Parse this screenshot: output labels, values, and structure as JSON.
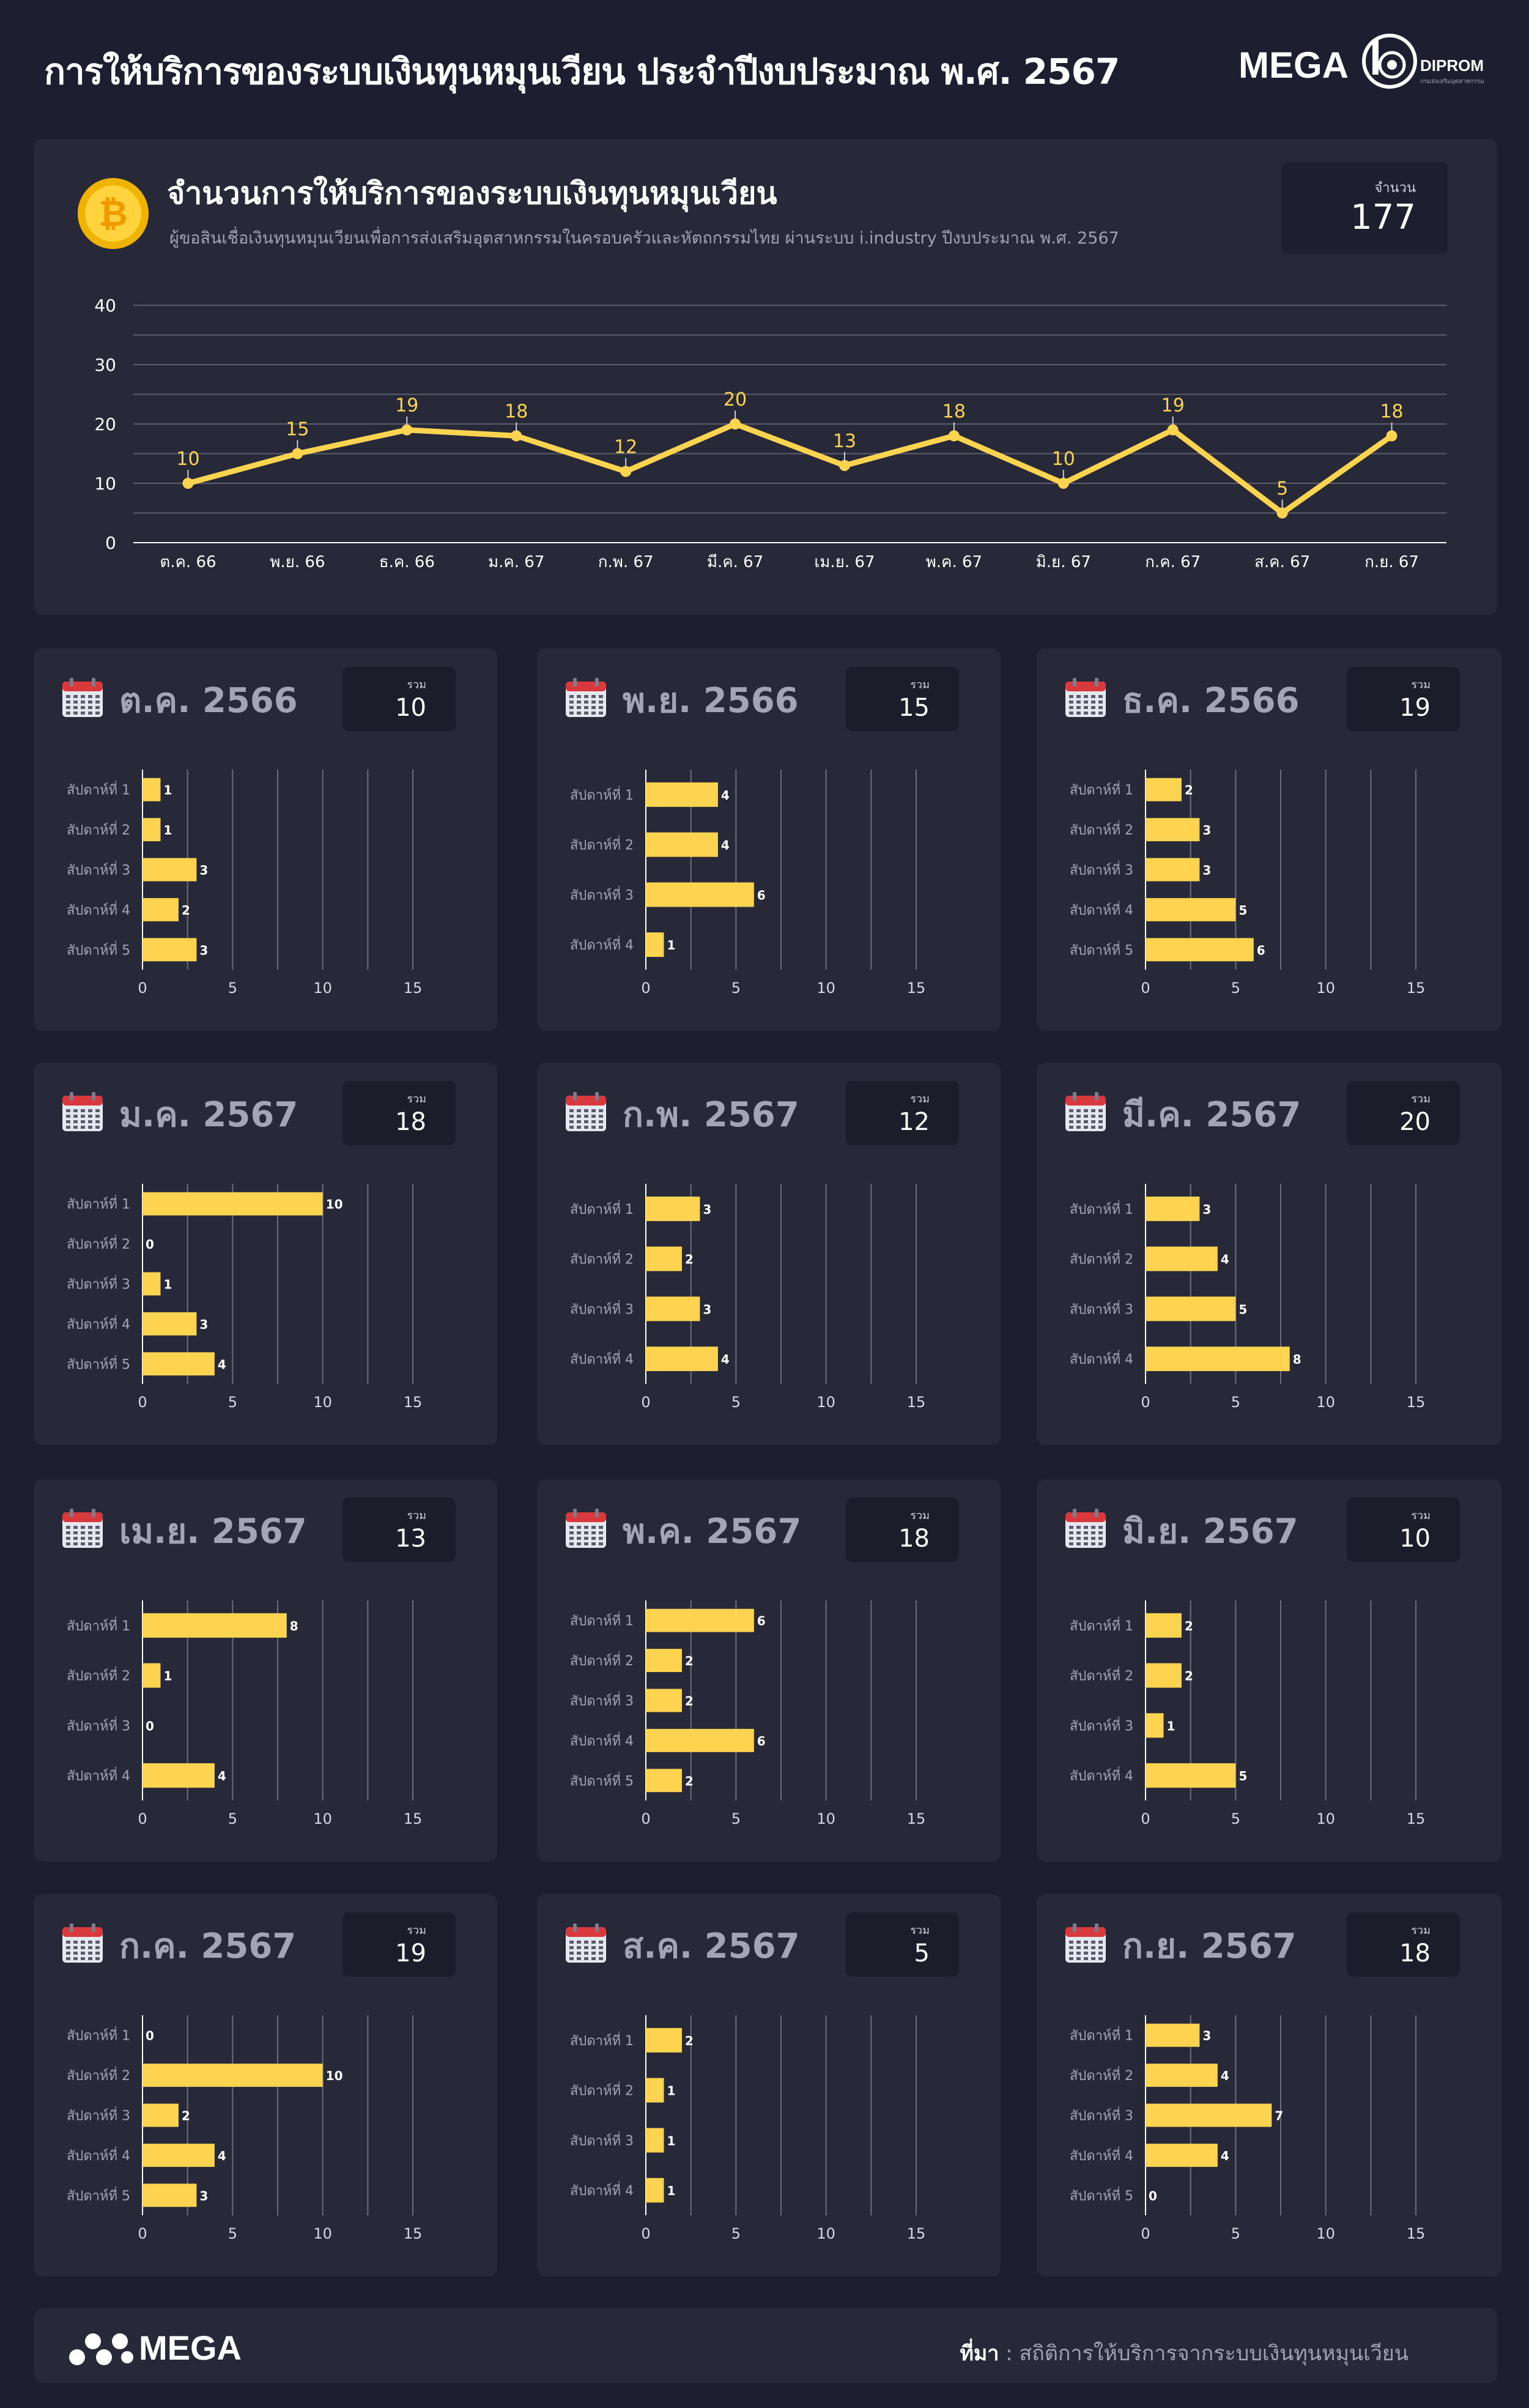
{
  "header": {
    "title": "การให้บริการของระบบเงินทุนหมุนเวียน ประจำปีงบประมาณ พ.ศ. 2567",
    "brand": "MEGA",
    "partner": "DIPROM",
    "partner_sub": "กรมส่งเสริมอุตสาหกรรม"
  },
  "summary": {
    "title": "จำนวนการให้บริการของระบบเงินทุนหมุนเวียน",
    "subtitle": "ผู้ขอสินเชื่อเงินทุนหมุนเวียนเพื่อการส่งเสริมอุตสาหกรรมในครอบครัวและหัตถกรรมไทย ผ่านระบบ i.industry ปีงบประมาณ พ.ศ.  2567",
    "total_label": "จำนวน",
    "total_value": "177"
  },
  "colors": {
    "accent": "#fdd450",
    "background": "#1d1e2f",
    "panel": "#272939",
    "muted": "#a3a5b6"
  },
  "chart_data": [
    {
      "type": "line",
      "categories": [
        "ต.ค. 66",
        "พ.ย. 66",
        "ธ.ค. 66",
        "ม.ค. 67",
        "ก.พ. 67",
        "มี.ค. 67",
        "เม.ย. 67",
        "พ.ค. 67",
        "มิ.ย. 67",
        "ก.ค. 67",
        "ส.ค. 67",
        "ก.ย. 67"
      ],
      "values": [
        10,
        15,
        19,
        18,
        12,
        20,
        13,
        18,
        10,
        19,
        5,
        18
      ],
      "ylim": [
        0,
        40
      ],
      "yticks": [
        0,
        10,
        20,
        30,
        40
      ],
      "grid": true
    },
    {
      "type": "bar",
      "orientation": "horizontal",
      "title": "ต.ค. 2566",
      "sum_label": "รวม",
      "sum": "10",
      "categories": [
        "สัปดาห์ที่ 1",
        "สัปดาห์ที่ 2",
        "สัปดาห์ที่ 3",
        "สัปดาห์ที่ 4",
        "สัปดาห์ที่ 5"
      ],
      "values": [
        1,
        1,
        3,
        2,
        3
      ],
      "xlim": [
        0,
        15
      ],
      "xticks": [
        0,
        5,
        10,
        15
      ]
    },
    {
      "type": "bar",
      "orientation": "horizontal",
      "title": "พ.ย. 2566",
      "sum_label": "รวม",
      "sum": "15",
      "categories": [
        "สัปดาห์ที่ 1",
        "สัปดาห์ที่ 2",
        "สัปดาห์ที่ 3",
        "สัปดาห์ที่ 4"
      ],
      "values": [
        4,
        4,
        6,
        1
      ],
      "xlim": [
        0,
        15
      ],
      "xticks": [
        0,
        5,
        10,
        15
      ]
    },
    {
      "type": "bar",
      "orientation": "horizontal",
      "title": "ธ.ค. 2566",
      "sum_label": "รวม",
      "sum": "19",
      "categories": [
        "สัปดาห์ที่ 1",
        "สัปดาห์ที่ 2",
        "สัปดาห์ที่ 3",
        "สัปดาห์ที่ 4",
        "สัปดาห์ที่ 5"
      ],
      "values": [
        2,
        3,
        3,
        5,
        6
      ],
      "xlim": [
        0,
        15
      ],
      "xticks": [
        0,
        5,
        10,
        15
      ]
    },
    {
      "type": "bar",
      "orientation": "horizontal",
      "title": "ม.ค. 2567",
      "sum_label": "รวม",
      "sum": "18",
      "categories": [
        "สัปดาห์ที่ 1",
        "สัปดาห์ที่ 2",
        "สัปดาห์ที่ 3",
        "สัปดาห์ที่ 4",
        "สัปดาห์ที่ 5"
      ],
      "values": [
        10,
        0,
        1,
        3,
        4
      ],
      "xlim": [
        0,
        15
      ],
      "xticks": [
        0,
        5,
        10,
        15
      ]
    },
    {
      "type": "bar",
      "orientation": "horizontal",
      "title": "ก.พ. 2567",
      "sum_label": "รวม",
      "sum": "12",
      "categories": [
        "สัปดาห์ที่ 1",
        "สัปดาห์ที่ 2",
        "สัปดาห์ที่ 3",
        "สัปดาห์ที่ 4"
      ],
      "values": [
        3,
        2,
        3,
        4
      ],
      "xlim": [
        0,
        15
      ],
      "xticks": [
        0,
        5,
        10,
        15
      ]
    },
    {
      "type": "bar",
      "orientation": "horizontal",
      "title": "มี.ค. 2567",
      "sum_label": "รวม",
      "sum": "20",
      "categories": [
        "สัปดาห์ที่ 1",
        "สัปดาห์ที่ 2",
        "สัปดาห์ที่ 3",
        "สัปดาห์ที่ 4"
      ],
      "values": [
        3,
        4,
        5,
        8
      ],
      "xlim": [
        0,
        15
      ],
      "xticks": [
        0,
        5,
        10,
        15
      ]
    },
    {
      "type": "bar",
      "orientation": "horizontal",
      "title": "เม.ย. 2567",
      "sum_label": "รวม",
      "sum": "13",
      "categories": [
        "สัปดาห์ที่ 1",
        "สัปดาห์ที่ 2",
        "สัปดาห์ที่ 3",
        "สัปดาห์ที่ 4"
      ],
      "values": [
        8,
        1,
        0,
        4
      ],
      "xlim": [
        0,
        15
      ],
      "xticks": [
        0,
        5,
        10,
        15
      ]
    },
    {
      "type": "bar",
      "orientation": "horizontal",
      "title": "พ.ค. 2567",
      "sum_label": "รวม",
      "sum": "18",
      "categories": [
        "สัปดาห์ที่ 1",
        "สัปดาห์ที่ 2",
        "สัปดาห์ที่ 3",
        "สัปดาห์ที่ 4",
        "สัปดาห์ที่ 5"
      ],
      "values": [
        6,
        2,
        2,
        6,
        2
      ],
      "xlim": [
        0,
        15
      ],
      "xticks": [
        0,
        5,
        10,
        15
      ]
    },
    {
      "type": "bar",
      "orientation": "horizontal",
      "title": "มิ.ย. 2567",
      "sum_label": "รวม",
      "sum": "10",
      "categories": [
        "สัปดาห์ที่ 1",
        "สัปดาห์ที่ 2",
        "สัปดาห์ที่ 3",
        "สัปดาห์ที่ 4"
      ],
      "values": [
        2,
        2,
        1,
        5
      ],
      "xlim": [
        0,
        15
      ],
      "xticks": [
        0,
        5,
        10,
        15
      ]
    },
    {
      "type": "bar",
      "orientation": "horizontal",
      "title": "ก.ค. 2567",
      "sum_label": "รวม",
      "sum": "19",
      "categories": [
        "สัปดาห์ที่ 1",
        "สัปดาห์ที่ 2",
        "สัปดาห์ที่ 3",
        "สัปดาห์ที่ 4",
        "สัปดาห์ที่ 5"
      ],
      "values": [
        0,
        10,
        2,
        4,
        3
      ],
      "xlim": [
        0,
        15
      ],
      "xticks": [
        0,
        5,
        10,
        15
      ]
    },
    {
      "type": "bar",
      "orientation": "horizontal",
      "title": "ส.ค. 2567",
      "sum_label": "รวม",
      "sum": "5",
      "categories": [
        "สัปดาห์ที่ 1",
        "สัปดาห์ที่ 2",
        "สัปดาห์ที่ 3",
        "สัปดาห์ที่ 4"
      ],
      "values": [
        2,
        1,
        1,
        1
      ],
      "xlim": [
        0,
        15
      ],
      "xticks": [
        0,
        5,
        10,
        15
      ]
    },
    {
      "type": "bar",
      "orientation": "horizontal",
      "title": "ก.ย. 2567",
      "sum_label": "รวม",
      "sum": "18",
      "categories": [
        "สัปดาห์ที่ 1",
        "สัปดาห์ที่ 2",
        "สัปดาห์ที่ 3",
        "สัปดาห์ที่ 4",
        "สัปดาห์ที่ 5"
      ],
      "values": [
        3,
        4,
        7,
        4,
        0
      ],
      "xlim": [
        0,
        15
      ],
      "xticks": [
        0,
        5,
        10,
        15
      ]
    }
  ],
  "footer": {
    "brand": "MEGA",
    "source_label": "ที่มา",
    "source_text": " : สถิติการให้บริการจากระบบเงินทุนหมุนเวียน"
  }
}
